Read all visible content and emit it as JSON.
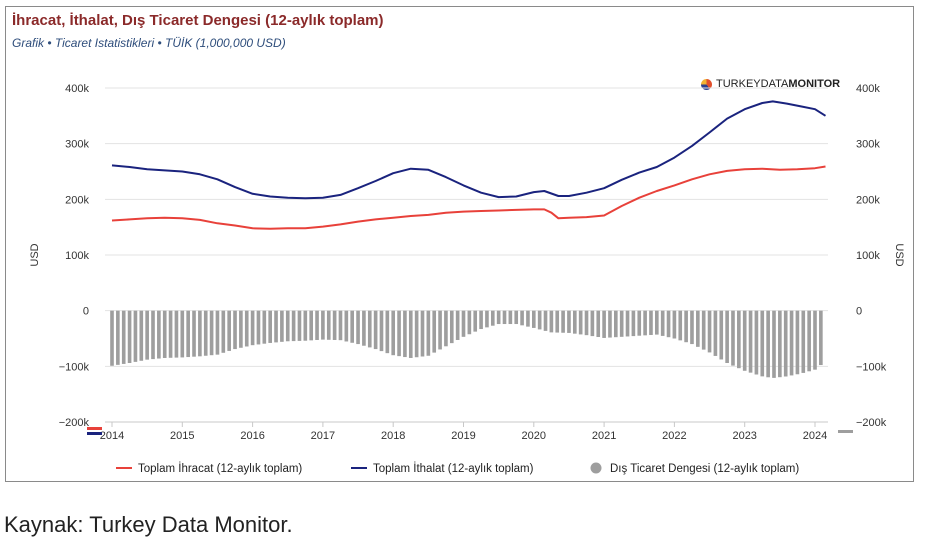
{
  "header": {
    "title": "İhracat, İthalat, Dış Ticaret Dengesi (12-aylık toplam)",
    "subtitle": "Grafik • Ticaret Istatistikleri • TÜİK (1,000,000 USD)",
    "brand_prefix": "TURKEY",
    "brand_mid": "DATA",
    "brand_suffix": "MONITOR"
  },
  "caption": "Kaynak: Turkey Data Monitor.",
  "chart_data": {
    "type": "line",
    "title": "İhracat, İthalat, Dış Ticaret Dengesi (12-aylık toplam)",
    "subtitle": "Grafik • Ticaret Istatistikleri • TÜİK (1,000,000 USD)",
    "ylabel_left": "USD",
    "ylabel_right": "USD",
    "ylim": [
      -200000,
      400000
    ],
    "yticks": [
      -200000,
      -100000,
      0,
      100000,
      200000,
      300000,
      400000
    ],
    "ytick_labels": [
      "−200k",
      "−100k",
      "0",
      "100k",
      "200k",
      "300k",
      "400k"
    ],
    "xlim": [
      2014.0,
      2024.2
    ],
    "xtick_labels": [
      "2014",
      "2015",
      "2016",
      "2017",
      "2018",
      "2019",
      "2020",
      "2021",
      "2022",
      "2023",
      "2024"
    ],
    "grid": true,
    "legend_position": "bottom",
    "series": [
      {
        "name": "Toplam İhracat (12-aylık toplam)",
        "type": "line",
        "color": "#e8413a",
        "points": [
          [
            2014.0,
            162000
          ],
          [
            2014.25,
            164000
          ],
          [
            2014.5,
            166000
          ],
          [
            2014.75,
            167000
          ],
          [
            2015.0,
            166000
          ],
          [
            2015.25,
            163000
          ],
          [
            2015.5,
            157000
          ],
          [
            2015.75,
            153000
          ],
          [
            2016.0,
            148000
          ],
          [
            2016.25,
            147000
          ],
          [
            2016.5,
            148000
          ],
          [
            2016.75,
            148000
          ],
          [
            2017.0,
            151000
          ],
          [
            2017.25,
            155000
          ],
          [
            2017.5,
            160000
          ],
          [
            2017.75,
            164000
          ],
          [
            2018.0,
            167000
          ],
          [
            2018.25,
            170000
          ],
          [
            2018.5,
            172000
          ],
          [
            2018.75,
            176000
          ],
          [
            2019.0,
            178000
          ],
          [
            2019.25,
            179000
          ],
          [
            2019.5,
            180000
          ],
          [
            2019.75,
            181000
          ],
          [
            2020.0,
            182000
          ],
          [
            2020.15,
            182000
          ],
          [
            2020.25,
            176000
          ],
          [
            2020.35,
            166000
          ],
          [
            2020.5,
            167000
          ],
          [
            2020.75,
            168000
          ],
          [
            2021.0,
            171000
          ],
          [
            2021.25,
            188000
          ],
          [
            2021.5,
            203000
          ],
          [
            2021.75,
            215000
          ],
          [
            2022.0,
            225000
          ],
          [
            2022.25,
            236000
          ],
          [
            2022.5,
            245000
          ],
          [
            2022.75,
            251000
          ],
          [
            2023.0,
            254000
          ],
          [
            2023.25,
            255000
          ],
          [
            2023.5,
            253000
          ],
          [
            2023.75,
            254000
          ],
          [
            2024.0,
            256000
          ],
          [
            2024.15,
            259000
          ]
        ]
      },
      {
        "name": "Toplam İthalat (12-aylık toplam)",
        "type": "line",
        "color": "#1a237e",
        "points": [
          [
            2014.0,
            261000
          ],
          [
            2014.25,
            258000
          ],
          [
            2014.5,
            254000
          ],
          [
            2014.75,
            252000
          ],
          [
            2015.0,
            250000
          ],
          [
            2015.25,
            245000
          ],
          [
            2015.5,
            236000
          ],
          [
            2015.75,
            222000
          ],
          [
            2016.0,
            210000
          ],
          [
            2016.25,
            205000
          ],
          [
            2016.5,
            203000
          ],
          [
            2016.75,
            202000
          ],
          [
            2017.0,
            203000
          ],
          [
            2017.25,
            208000
          ],
          [
            2017.5,
            220000
          ],
          [
            2017.75,
            233000
          ],
          [
            2018.0,
            247000
          ],
          [
            2018.25,
            255000
          ],
          [
            2018.5,
            253000
          ],
          [
            2018.75,
            240000
          ],
          [
            2019.0,
            225000
          ],
          [
            2019.25,
            212000
          ],
          [
            2019.5,
            204000
          ],
          [
            2019.75,
            205000
          ],
          [
            2020.0,
            213000
          ],
          [
            2020.15,
            215000
          ],
          [
            2020.35,
            206000
          ],
          [
            2020.5,
            206000
          ],
          [
            2020.75,
            212000
          ],
          [
            2021.0,
            220000
          ],
          [
            2021.25,
            235000
          ],
          [
            2021.5,
            248000
          ],
          [
            2021.75,
            258000
          ],
          [
            2022.0,
            275000
          ],
          [
            2022.25,
            296000
          ],
          [
            2022.5,
            320000
          ],
          [
            2022.75,
            345000
          ],
          [
            2023.0,
            362000
          ],
          [
            2023.25,
            373000
          ],
          [
            2023.4,
            376000
          ],
          [
            2023.6,
            372000
          ],
          [
            2023.8,
            367000
          ],
          [
            2024.0,
            362000
          ],
          [
            2024.15,
            350000
          ]
        ]
      },
      {
        "name": "Dış Ticaret Dengesi (12-aylık toplam)",
        "type": "bar",
        "color": "#9e9e9e",
        "points": [
          [
            2014.0,
            -99000
          ],
          [
            2014.25,
            -94000
          ],
          [
            2014.5,
            -88000
          ],
          [
            2014.75,
            -85000
          ],
          [
            2015.0,
            -84000
          ],
          [
            2015.25,
            -82000
          ],
          [
            2015.5,
            -79000
          ],
          [
            2015.75,
            -69000
          ],
          [
            2016.0,
            -62000
          ],
          [
            2016.25,
            -58000
          ],
          [
            2016.5,
            -55000
          ],
          [
            2016.75,
            -54000
          ],
          [
            2017.0,
            -52000
          ],
          [
            2017.25,
            -53000
          ],
          [
            2017.5,
            -60000
          ],
          [
            2017.75,
            -69000
          ],
          [
            2018.0,
            -80000
          ],
          [
            2018.25,
            -85000
          ],
          [
            2018.5,
            -81000
          ],
          [
            2018.75,
            -64000
          ],
          [
            2019.0,
            -47000
          ],
          [
            2019.25,
            -33000
          ],
          [
            2019.5,
            -24000
          ],
          [
            2019.75,
            -24000
          ],
          [
            2020.0,
            -31000
          ],
          [
            2020.25,
            -39000
          ],
          [
            2020.5,
            -40000
          ],
          [
            2020.75,
            -44000
          ],
          [
            2021.0,
            -49000
          ],
          [
            2021.25,
            -47000
          ],
          [
            2021.5,
            -45000
          ],
          [
            2021.75,
            -43000
          ],
          [
            2022.0,
            -50000
          ],
          [
            2022.25,
            -60000
          ],
          [
            2022.5,
            -75000
          ],
          [
            2022.75,
            -94000
          ],
          [
            2023.0,
            -108000
          ],
          [
            2023.25,
            -118000
          ],
          [
            2023.4,
            -121000
          ],
          [
            2023.6,
            -118000
          ],
          [
            2023.8,
            -113000
          ],
          [
            2024.0,
            -106000
          ],
          [
            2024.15,
            -91000
          ]
        ]
      }
    ]
  }
}
